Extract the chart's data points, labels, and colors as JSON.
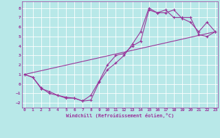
{
  "xlabel": "Windchill (Refroidissement éolien,°C)",
  "bg_color": "#b8e8e8",
  "line_color": "#993399",
  "grid_color": "#d0ecec",
  "yticks": [
    -2,
    -1,
    0,
    1,
    2,
    3,
    4,
    5,
    6,
    7,
    8
  ],
  "xticks": [
    0,
    1,
    2,
    3,
    4,
    5,
    6,
    7,
    8,
    9,
    10,
    11,
    12,
    13,
    14,
    15,
    16,
    17,
    18,
    19,
    20,
    21,
    22,
    23
  ],
  "xlim": [
    -0.3,
    23.3
  ],
  "ylim": [
    -2.5,
    8.7
  ],
  "curve1_x": [
    0,
    1,
    2,
    3,
    4,
    5,
    6,
    7,
    8,
    9,
    10,
    11,
    12,
    13,
    14,
    15,
    16,
    17,
    18,
    19,
    20,
    21,
    22,
    23
  ],
  "curve1_y": [
    1.0,
    0.7,
    -0.5,
    -0.8,
    -1.2,
    -1.4,
    -1.5,
    -1.8,
    -1.7,
    0.2,
    1.5,
    2.2,
    3.0,
    4.2,
    5.5,
    8.0,
    7.5,
    7.5,
    7.8,
    6.9,
    6.5,
    5.5,
    6.5,
    5.5
  ],
  "curve2_x": [
    0,
    1,
    2,
    3,
    4,
    5,
    6,
    7,
    8,
    9,
    10,
    11,
    12,
    13,
    14,
    15,
    16,
    17,
    18,
    19,
    20,
    21,
    22,
    23
  ],
  "curve2_y": [
    1.0,
    0.7,
    -0.4,
    -1.0,
    -1.2,
    -1.5,
    -1.5,
    -1.8,
    -1.2,
    0.3,
    2.0,
    3.0,
    3.2,
    4.0,
    4.5,
    7.8,
    7.5,
    7.8,
    7.0,
    7.0,
    7.0,
    5.2,
    5.0,
    5.5
  ],
  "curve3_x": [
    0,
    23
  ],
  "curve3_y": [
    1.0,
    5.5
  ]
}
